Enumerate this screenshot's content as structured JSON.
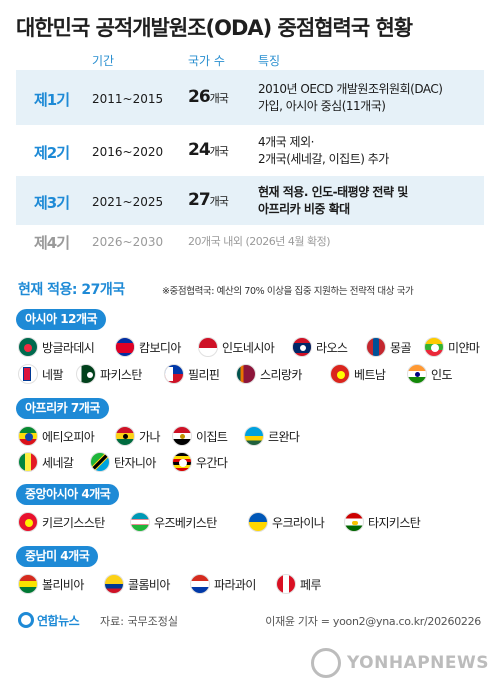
{
  "title": "대한민국 공적개발원조(ODA) 중점협력국 현황",
  "table": {
    "headers": {
      "period": "기간",
      "count": "국가 수",
      "feature": "특징"
    },
    "rows": [
      {
        "order": "제1기",
        "period": "2011~2015",
        "count": "26",
        "unit": "개국",
        "feature_line1": "2010년 OECD 개발원조위원회(DAC)",
        "feature_line2": "가입, 아시아 중심(11개국)"
      },
      {
        "order": "제2기",
        "period": "2016~2020",
        "count": "24",
        "unit": "개국",
        "feature_line1": "4개국 제외·",
        "feature_line2": "2개국(세네갈, 이집트) 추가"
      },
      {
        "order": "제3기",
        "period": "2021~2025",
        "count": "27",
        "unit": "개국",
        "feature_line1": "현재 적용. 인도-태평양 전략 및",
        "feature_line2": "아프리카 비중 확대"
      },
      {
        "order": "제4기",
        "period": "2026~2030",
        "feature_line1": "20개국 내외 (2026년 4월 확정)"
      }
    ]
  },
  "current": {
    "label": "현재 적용: 27개국",
    "note": "※중점협력국: 예산의 70% 이상을 집중 지원하는 전략적 대상 국가"
  },
  "regions": [
    {
      "label": "아시아 12개국",
      "countries": [
        {
          "name": "방글라데시",
          "icon": "bangladesh-flag-icon"
        },
        {
          "name": "캄보디아",
          "icon": "cambodia-flag-icon"
        },
        {
          "name": "인도네시아",
          "icon": "indonesia-flag-icon"
        },
        {
          "name": "라오스",
          "icon": "laos-flag-icon"
        },
        {
          "name": "몽골",
          "icon": "mongolia-flag-icon"
        },
        {
          "name": "미얀마",
          "icon": "myanmar-flag-icon"
        },
        {
          "name": "네팔",
          "icon": "nepal-flag-icon"
        },
        {
          "name": "파키스탄",
          "icon": "pakistan-flag-icon"
        },
        {
          "name": "필리핀",
          "icon": "philippines-flag-icon"
        },
        {
          "name": "스리랑카",
          "icon": "sri-lanka-flag-icon"
        },
        {
          "name": "베트남",
          "icon": "vietnam-flag-icon"
        },
        {
          "name": "인도",
          "icon": "india-flag-icon"
        }
      ]
    },
    {
      "label": "아프리카 7개국",
      "countries": [
        {
          "name": "에티오피아",
          "icon": "ethiopia-flag-icon"
        },
        {
          "name": "가나",
          "icon": "ghana-flag-icon"
        },
        {
          "name": "이집트",
          "icon": "egypt-flag-icon"
        },
        {
          "name": "르완다",
          "icon": "rwanda-flag-icon"
        },
        {
          "name": "세네갈",
          "icon": "senegal-flag-icon"
        },
        {
          "name": "탄자니아",
          "icon": "tanzania-flag-icon"
        },
        {
          "name": "우간다",
          "icon": "uganda-flag-icon"
        }
      ]
    },
    {
      "label": "중앙아시아 4개국",
      "countries": [
        {
          "name": "키르기스스탄",
          "icon": "kyrgyzstan-flag-icon"
        },
        {
          "name": "우즈베키스탄",
          "icon": "uzbekistan-flag-icon"
        },
        {
          "name": "우크라이나",
          "icon": "ukraine-flag-icon"
        },
        {
          "name": "타지키스탄",
          "icon": "tajikistan-flag-icon"
        }
      ]
    },
    {
      "label": "중남미 4개국",
      "countries": [
        {
          "name": "볼리비아",
          "icon": "bolivia-flag-icon"
        },
        {
          "name": "콜롬비아",
          "icon": "colombia-flag-icon"
        },
        {
          "name": "파라과이",
          "icon": "paraguay-flag-icon"
        },
        {
          "name": "페루",
          "icon": "peru-flag-icon"
        }
      ]
    }
  ],
  "footer": {
    "logo": "연합뉴스",
    "source": "자료: 국무조정실",
    "credit": "이재윤 기자 = yoon2@yna.co.kr/20260226",
    "watermark": "YONHAPNEWS"
  },
  "colors": {
    "accent": "#1e8ad6",
    "row_shade": "#e6f1f8"
  }
}
